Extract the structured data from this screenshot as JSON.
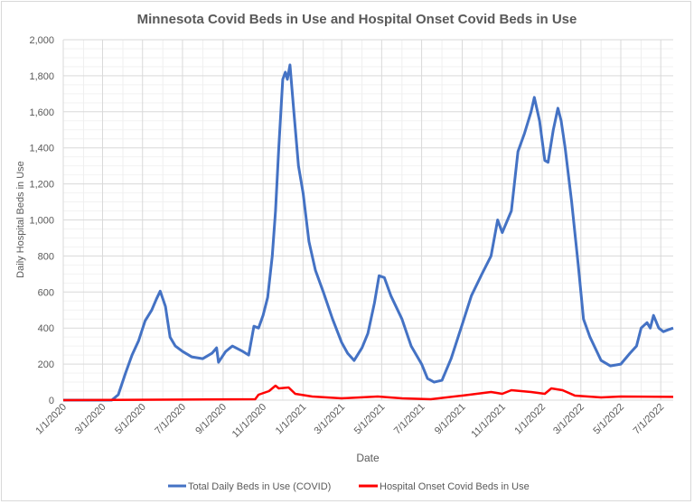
{
  "chart_data": {
    "type": "line",
    "title": "Minnesota Covid Beds in Use and Hospital Onset Covid Beds in Use",
    "xlabel": "Date",
    "ylabel": "Daily Hospital Beds in Use",
    "ylim": [
      0,
      2000
    ],
    "yticks": [
      "0",
      "200",
      "400",
      "600",
      "800",
      "1,000",
      "1,200",
      "1,400",
      "1,600",
      "1,800",
      "2,000"
    ],
    "xlim": [
      "2020-01-01",
      "2022-07-20"
    ],
    "xticks": [
      "1/1/2020",
      "3/1/2020",
      "5/1/2020",
      "7/1/2020",
      "9/1/2020",
      "11/1/2020",
      "1/1/2021",
      "3/1/2021",
      "5/1/2021",
      "7/1/2021",
      "9/1/2021",
      "11/1/2021",
      "1/1/2022",
      "3/1/2022",
      "5/1/2022",
      "7/1/2022"
    ],
    "grid": true,
    "legend": "bottom",
    "series": [
      {
        "name": "Total Daily Beds in Use (COVID)",
        "color": "#4472c4",
        "x": [
          "2020-01-01",
          "2020-03-15",
          "2020-03-25",
          "2020-04-05",
          "2020-04-15",
          "2020-04-25",
          "2020-05-05",
          "2020-05-15",
          "2020-05-22",
          "2020-05-28",
          "2020-06-05",
          "2020-06-12",
          "2020-06-20",
          "2020-07-01",
          "2020-07-15",
          "2020-08-01",
          "2020-08-15",
          "2020-08-22",
          "2020-08-25",
          "2020-09-05",
          "2020-09-15",
          "2020-10-01",
          "2020-10-10",
          "2020-10-18",
          "2020-10-25",
          "2020-11-01",
          "2020-11-08",
          "2020-11-15",
          "2020-11-20",
          "2020-11-25",
          "2020-12-01",
          "2020-12-05",
          "2020-12-08",
          "2020-12-12",
          "2020-12-18",
          "2020-12-25",
          "2021-01-01",
          "2021-01-10",
          "2021-01-20",
          "2021-02-01",
          "2021-02-15",
          "2021-03-01",
          "2021-03-10",
          "2021-03-20",
          "2021-04-01",
          "2021-04-10",
          "2021-04-20",
          "2021-04-27",
          "2021-05-05",
          "2021-05-15",
          "2021-06-01",
          "2021-06-15",
          "2021-07-01",
          "2021-07-10",
          "2021-07-20",
          "2021-08-01",
          "2021-08-15",
          "2021-09-01",
          "2021-09-15",
          "2021-10-01",
          "2021-10-15",
          "2021-10-25",
          "2021-11-01",
          "2021-11-15",
          "2021-11-25",
          "2021-12-05",
          "2021-12-15",
          "2021-12-20",
          "2021-12-28",
          "2022-01-05",
          "2022-01-10",
          "2022-01-18",
          "2022-01-25",
          "2022-01-30",
          "2022-02-05",
          "2022-02-15",
          "2022-02-25",
          "2022-03-05",
          "2022-03-15",
          "2022-04-01",
          "2022-04-15",
          "2022-05-01",
          "2022-05-15",
          "2022-05-25",
          "2022-06-01",
          "2022-06-10",
          "2022-06-15",
          "2022-06-20",
          "2022-06-28",
          "2022-07-05",
          "2022-07-12",
          "2022-07-20"
        ],
        "values": [
          0,
          0,
          30,
          150,
          250,
          330,
          440,
          500,
          560,
          605,
          520,
          350,
          300,
          270,
          240,
          230,
          260,
          290,
          210,
          270,
          300,
          270,
          250,
          410,
          400,
          470,
          570,
          800,
          1050,
          1400,
          1780,
          1820,
          1780,
          1860,
          1600,
          1300,
          1150,
          880,
          720,
          600,
          450,
          320,
          260,
          220,
          290,
          370,
          540,
          690,
          680,
          580,
          450,
          300,
          200,
          120,
          100,
          110,
          230,
          420,
          580,
          700,
          800,
          1000,
          930,
          1050,
          1380,
          1480,
          1600,
          1680,
          1550,
          1330,
          1320,
          1500,
          1620,
          1550,
          1400,
          1100,
          750,
          450,
          350,
          220,
          190,
          200,
          260,
          300,
          400,
          430,
          400,
          470,
          400,
          380,
          390,
          400
        ]
      },
      {
        "name": "Hospital Onset Covid Beds in Use",
        "color": "#ff0000",
        "x": [
          "2020-01-01",
          "2020-10-20",
          "2020-10-25",
          "2020-11-10",
          "2020-11-20",
          "2020-11-25",
          "2020-12-10",
          "2020-12-20",
          "2021-01-15",
          "2021-03-01",
          "2021-04-25",
          "2021-06-01",
          "2021-07-15",
          "2021-09-01",
          "2021-10-15",
          "2021-11-01",
          "2021-11-15",
          "2021-12-15",
          "2022-01-05",
          "2022-01-15",
          "2022-02-01",
          "2022-02-20",
          "2022-04-01",
          "2022-05-01",
          "2022-07-20"
        ],
        "values": [
          0,
          5,
          30,
          50,
          80,
          65,
          70,
          35,
          20,
          10,
          20,
          10,
          5,
          25,
          45,
          35,
          55,
          45,
          35,
          65,
          55,
          25,
          15,
          20,
          18
        ]
      }
    ]
  }
}
